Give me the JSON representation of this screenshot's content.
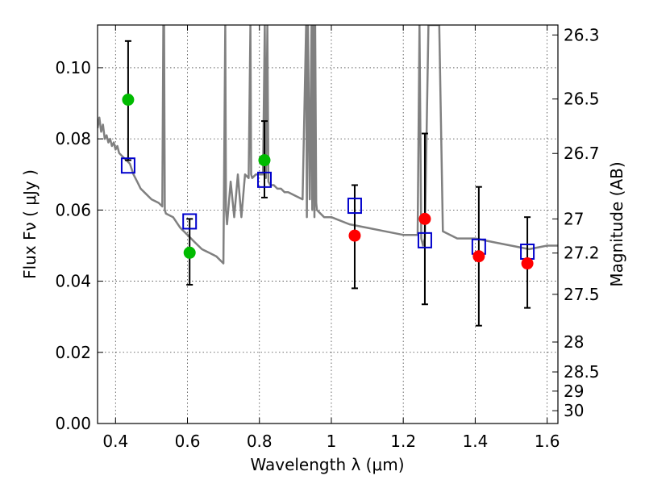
{
  "chart_data": {
    "type": "scatter",
    "title": "",
    "xlabel": "Wavelength  λ (μm)",
    "ylabel": "Flux  Fν  ( μJy )",
    "y2label": "Magnitude (AB)",
    "xlim": [
      0.35,
      1.63
    ],
    "ylim": [
      0.0,
      0.112
    ],
    "grid": true,
    "x_ticks": [
      0.4,
      0.6,
      0.8,
      1.0,
      1.2,
      1.4,
      1.6
    ],
    "x_tick_labels": [
      "0.4",
      "0.6",
      "0.8",
      "1",
      "1.2",
      "1.4",
      "1.6"
    ],
    "y_ticks": [
      0.0,
      0.02,
      0.04,
      0.06,
      0.08,
      0.1
    ],
    "y_tick_labels": [
      "0.00",
      "0.02",
      "0.04",
      "0.06",
      "0.08",
      "0.10"
    ],
    "y2_ticks": [
      {
        "label": "26.3",
        "flux": 0.1092
      },
      {
        "label": "26.5",
        "flux": 0.0912
      },
      {
        "label": "26.7",
        "flux": 0.0759
      },
      {
        "label": "27",
        "flux": 0.0575
      },
      {
        "label": "27.2",
        "flux": 0.0479
      },
      {
        "label": "27.5",
        "flux": 0.0363
      },
      {
        "label": "28",
        "flux": 0.0229
      },
      {
        "label": "28.5",
        "flux": 0.0145
      },
      {
        "label": "29",
        "flux": 0.0091
      },
      {
        "label": "30",
        "flux": 0.0036
      }
    ],
    "series": [
      {
        "type": "line",
        "color": "#808080",
        "x": [
          0.35,
          0.355,
          0.36,
          0.365,
          0.37,
          0.375,
          0.38,
          0.385,
          0.39,
          0.395,
          0.4,
          0.405,
          0.41,
          0.42,
          0.43,
          0.44,
          0.45,
          0.46,
          0.47,
          0.48,
          0.5,
          0.52,
          0.53,
          0.533,
          0.535,
          0.537,
          0.54,
          0.56,
          0.58,
          0.6,
          0.62,
          0.64,
          0.66,
          0.68,
          0.7,
          0.705,
          0.707,
          0.71,
          0.72,
          0.73,
          0.74,
          0.75,
          0.76,
          0.77,
          0.775,
          0.777,
          0.78,
          0.79,
          0.8,
          0.81,
          0.815,
          0.818,
          0.822,
          0.825,
          0.83,
          0.84,
          0.85,
          0.86,
          0.87,
          0.88,
          0.9,
          0.92,
          0.93,
          0.932,
          0.935,
          0.94,
          0.945,
          0.947,
          0.95,
          0.953,
          0.955,
          0.958,
          0.96,
          0.98,
          1.0,
          1.05,
          1.1,
          1.15,
          1.2,
          1.24,
          1.245,
          1.25,
          1.255,
          1.26,
          1.27,
          1.275,
          1.28,
          1.3,
          1.31,
          1.35,
          1.4,
          1.45,
          1.5,
          1.55,
          1.6,
          1.63
        ],
        "y": [
          0.083,
          0.086,
          0.082,
          0.084,
          0.08,
          0.081,
          0.079,
          0.08,
          0.078,
          0.079,
          0.077,
          0.078,
          0.076,
          0.075,
          0.074,
          0.073,
          0.07,
          0.068,
          0.066,
          0.065,
          0.063,
          0.062,
          0.061,
          0.112,
          0.112,
          0.06,
          0.059,
          0.058,
          0.055,
          0.053,
          0.051,
          0.049,
          0.048,
          0.047,
          0.045,
          0.112,
          0.06,
          0.056,
          0.068,
          0.058,
          0.07,
          0.058,
          0.07,
          0.069,
          0.112,
          0.07,
          0.069,
          0.07,
          0.07,
          0.07,
          0.112,
          0.069,
          0.112,
          0.068,
          0.067,
          0.067,
          0.066,
          0.066,
          0.065,
          0.065,
          0.064,
          0.063,
          0.112,
          0.058,
          0.112,
          0.063,
          0.112,
          0.06,
          0.112,
          0.058,
          0.112,
          0.062,
          0.06,
          0.058,
          0.058,
          0.056,
          0.055,
          0.054,
          0.053,
          0.053,
          0.112,
          0.052,
          0.05,
          0.052,
          0.112,
          0.112,
          0.112,
          0.112,
          0.054,
          0.052,
          0.052,
          0.051,
          0.05,
          0.049,
          0.05,
          0.05
        ]
      },
      {
        "type": "errorbar",
        "color": "#000000",
        "points": [
          {
            "x": 0.435,
            "lo": 0.074,
            "hi": 0.1075
          },
          {
            "x": 0.606,
            "lo": 0.039,
            "hi": 0.0575
          },
          {
            "x": 0.814,
            "lo": 0.0635,
            "hi": 0.085
          },
          {
            "x": 1.065,
            "lo": 0.038,
            "hi": 0.067
          },
          {
            "x": 1.26,
            "lo": 0.0335,
            "hi": 0.0815
          },
          {
            "x": 1.41,
            "lo": 0.0275,
            "hi": 0.0665
          },
          {
            "x": 1.545,
            "lo": 0.0325,
            "hi": 0.058
          }
        ]
      },
      {
        "type": "marker-square",
        "color": "#0000cc",
        "points": [
          [
            0.435,
            0.0725
          ],
          [
            0.606,
            0.0568
          ],
          [
            0.814,
            0.0685
          ],
          [
            1.065,
            0.0612
          ],
          [
            1.26,
            0.0515
          ],
          [
            1.41,
            0.0497
          ],
          [
            1.545,
            0.0483
          ]
        ]
      },
      {
        "type": "marker-circle",
        "color": "#00bb00",
        "points": [
          [
            0.435,
            0.091
          ],
          [
            0.606,
            0.048
          ],
          [
            0.814,
            0.074
          ]
        ]
      },
      {
        "type": "marker-circle",
        "color": "#ff0000",
        "points": [
          [
            1.065,
            0.0528
          ],
          [
            1.26,
            0.0575
          ],
          [
            1.41,
            0.047
          ],
          [
            1.545,
            0.045
          ]
        ]
      }
    ]
  }
}
